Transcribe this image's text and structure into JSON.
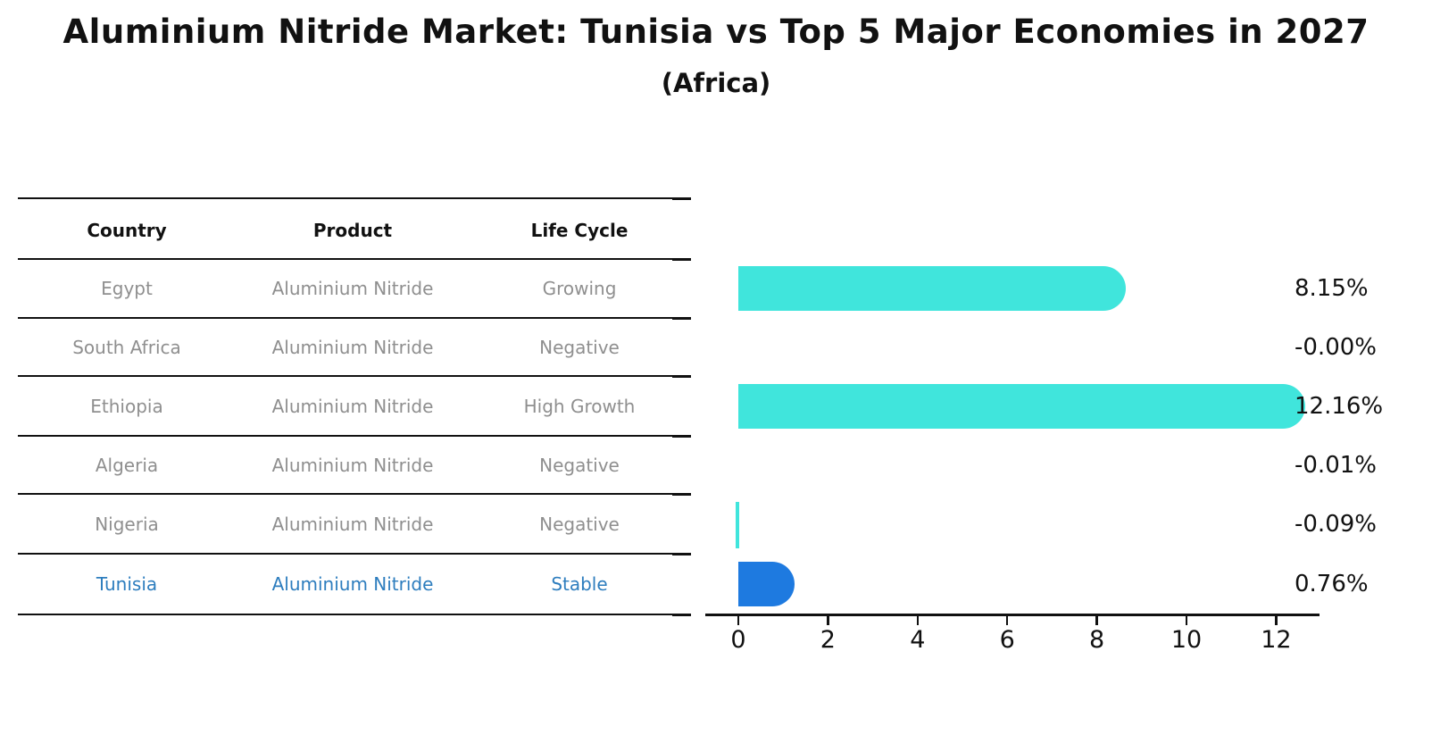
{
  "title": "Aluminium Nitride Market: Tunisia vs Top 5 Major Economies in 2027",
  "subtitle": "(Africa)",
  "chart_data": {
    "type": "bar",
    "orientation": "horizontal",
    "title": "Aluminium Nitride Market: Tunisia vs Top 5 Major Economies in 2027",
    "subtitle": "(Africa)",
    "table": {
      "headers": [
        "Country",
        "Product",
        "Life Cycle"
      ]
    },
    "rows": [
      {
        "country": "Egypt",
        "product": "Aluminium Nitride",
        "life_cycle": "Growing",
        "value": 8.15,
        "label": "8.15%",
        "highlight": false
      },
      {
        "country": "South Africa",
        "product": "Aluminium Nitride",
        "life_cycle": "Negative",
        "value": -0.0,
        "label": "-0.00%",
        "highlight": false
      },
      {
        "country": "Ethiopia",
        "product": "Aluminium Nitride",
        "life_cycle": "High Growth",
        "value": 12.16,
        "label": "12.16%",
        "highlight": false
      },
      {
        "country": "Algeria",
        "product": "Aluminium Nitride",
        "life_cycle": "Negative",
        "value": -0.01,
        "label": "-0.01%",
        "highlight": false
      },
      {
        "country": "Nigeria",
        "product": "Aluminium Nitride",
        "life_cycle": "Negative",
        "value": -0.09,
        "label": "-0.09%",
        "highlight": false
      },
      {
        "country": "Tunisia",
        "product": "Aluminium Nitride",
        "life_cycle": "Stable",
        "value": 0.76,
        "label": "0.76%",
        "highlight": true
      }
    ],
    "xticks": [
      0,
      2,
      4,
      6,
      8,
      10,
      12
    ],
    "xlim": [
      -0.75,
      12.95
    ],
    "xlabel": "",
    "ylabel": "",
    "grid": false,
    "legend": "none",
    "colors": {
      "bar": "#40E5DC",
      "highlight_bar": "#1E7AE0",
      "highlight_text": "#2D7DBE",
      "row_text": "#8F8F8F",
      "header_text": "#111111",
      "axis": "#111111"
    }
  }
}
